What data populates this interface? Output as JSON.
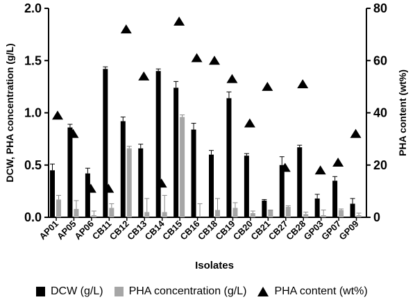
{
  "chart_data": {
    "type": "bar",
    "xlabel": "Isolates",
    "ylabel": "DCW, PHA concentration (g/L)",
    "y2label": "PHA content (wt%)",
    "ylim": [
      0,
      2.0
    ],
    "y2lim": [
      0,
      80
    ],
    "yticks": [
      "0.0",
      "0.5",
      "1.0",
      "1.5",
      "2.0"
    ],
    "y2ticks": [
      "0",
      "20",
      "40",
      "60",
      "80"
    ],
    "categories": [
      "AP01",
      "AP05",
      "AP06",
      "CB11",
      "CB12",
      "CB13",
      "CB14",
      "CB15",
      "CB16",
      "CB18",
      "CB19",
      "CB20",
      "CB21",
      "CB27",
      "CB28",
      "GP03",
      "GP07",
      "GP09"
    ],
    "series": [
      {
        "name": "DCW (g/L)",
        "axis": "left",
        "kind": "bar",
        "color": "#000000",
        "values": [
          0.45,
          0.86,
          0.42,
          1.42,
          0.92,
          0.66,
          1.4,
          1.24,
          0.84,
          0.6,
          1.14,
          0.59,
          0.16,
          0.5,
          0.67,
          0.18,
          0.35,
          0.13
        ],
        "errors": [
          0.06,
          0.03,
          0.05,
          0.02,
          0.04,
          0.04,
          0.02,
          0.06,
          0.06,
          0.04,
          0.06,
          0.02,
          0.01,
          0.08,
          0.02,
          0.04,
          0.04,
          0.05
        ]
      },
      {
        "name": "PHA concentration (g/L)",
        "axis": "left",
        "kind": "bar",
        "color": "#a6a6a6",
        "values": [
          0.17,
          0.08,
          0.02,
          0.09,
          0.66,
          0.05,
          0.05,
          0.96,
          0.0,
          0.07,
          0.09,
          0.04,
          0.07,
          0.1,
          0.03,
          0.02,
          0.07,
          0.02
        ],
        "errors": [
          0.04,
          0.08,
          0.04,
          0.04,
          0.02,
          0.13,
          0.16,
          0.02,
          0.13,
          0.11,
          0.05,
          0.02,
          0.0,
          0.01,
          0.02,
          0.05,
          0.01,
          0.02
        ]
      },
      {
        "name": "PHA content (wt%)",
        "axis": "right",
        "kind": "marker",
        "marker": "triangle",
        "color": "#000000",
        "values": [
          39,
          32,
          11,
          11,
          72,
          54,
          13,
          75,
          61,
          60,
          53,
          36,
          50,
          19,
          51,
          18,
          21,
          32
        ]
      }
    ],
    "legend_position": "bottom",
    "grid": false
  }
}
